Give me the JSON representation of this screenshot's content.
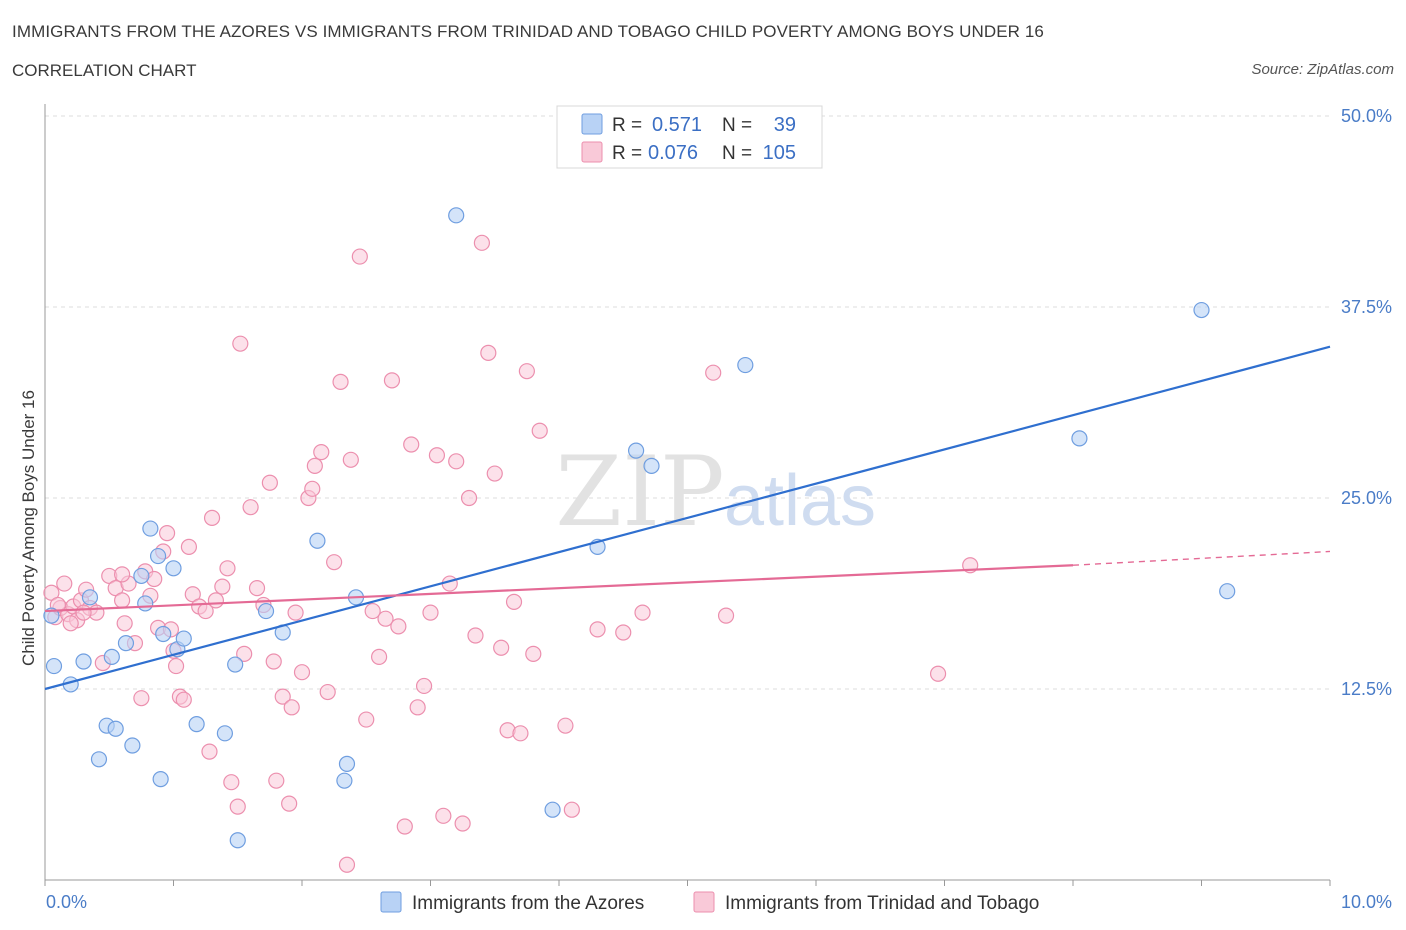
{
  "header": {
    "title": "IMMIGRANTS FROM THE AZORES VS IMMIGRANTS FROM TRINIDAD AND TOBAGO CHILD POVERTY AMONG BOYS UNDER 16",
    "subtitle": "CORRELATION CHART",
    "source": "Source: ZipAtlas.com"
  },
  "watermark": {
    "zip": "ZIP",
    "atlas": "atlas"
  },
  "legend": {
    "r_label": "R =",
    "n_label": "N =",
    "rows": [
      {
        "r": "0.571",
        "n": "39"
      },
      {
        "r": "0.076",
        "n": "105"
      }
    ]
  },
  "colors": {
    "azores_fill": "#b8d2f5",
    "azores_stroke": "#6f9ee0",
    "azores_line": "#2f6fcf",
    "trinidad_fill": "#f9c9d8",
    "trinidad_stroke": "#ec8fae",
    "trinidad_line": "#e46a95",
    "tick_text": "#4a7cc7",
    "grid": "#dcdcdc"
  },
  "chart_data": {
    "type": "scatter",
    "title": "IMMIGRANTS FROM THE AZORES VS IMMIGRANTS FROM TRINIDAD AND TOBAGO CHILD POVERTY AMONG BOYS UNDER 16",
    "xlabel": "",
    "ylabel": "Child Poverty Among Boys Under 16",
    "xlim": [
      0,
      10
    ],
    "ylim": [
      0,
      50
    ],
    "x_tick_labels": [
      "0.0%",
      "10.0%"
    ],
    "y_ticks": [
      12.5,
      25,
      37.5,
      50
    ],
    "y_tick_labels": [
      "12.5%",
      "25.0%",
      "37.5%",
      "50.0%"
    ],
    "grid": true,
    "legend_position": "top-center",
    "series": [
      {
        "name": "Immigrants from the Azores",
        "r": 0.571,
        "n": 39,
        "trend": {
          "x": [
            0,
            10
          ],
          "y": [
            12.5,
            34.9
          ]
        },
        "points": [
          [
            0.07,
            14.0
          ],
          [
            0.2,
            12.8
          ],
          [
            0.3,
            14.3
          ],
          [
            0.35,
            18.5
          ],
          [
            0.42,
            7.9
          ],
          [
            0.48,
            10.1
          ],
          [
            0.52,
            14.6
          ],
          [
            0.55,
            9.9
          ],
          [
            0.63,
            15.5
          ],
          [
            0.68,
            8.8
          ],
          [
            0.75,
            19.9
          ],
          [
            0.78,
            18.1
          ],
          [
            0.82,
            23.0
          ],
          [
            0.88,
            21.2
          ],
          [
            0.9,
            6.6
          ],
          [
            0.92,
            16.1
          ],
          [
            1.0,
            20.4
          ],
          [
            1.03,
            15.1
          ],
          [
            1.08,
            15.8
          ],
          [
            1.18,
            10.2
          ],
          [
            1.4,
            9.6
          ],
          [
            1.48,
            14.1
          ],
          [
            1.5,
            2.6
          ],
          [
            1.72,
            17.6
          ],
          [
            1.85,
            16.2
          ],
          [
            2.12,
            22.2
          ],
          [
            2.35,
            7.6
          ],
          [
            2.33,
            6.5
          ],
          [
            2.42,
            18.5
          ],
          [
            3.2,
            43.5
          ],
          [
            3.95,
            4.6
          ],
          [
            4.3,
            21.8
          ],
          [
            4.6,
            28.1
          ],
          [
            4.72,
            27.1
          ],
          [
            5.45,
            33.7
          ],
          [
            8.05,
            28.9
          ],
          [
            9.2,
            18.9
          ],
          [
            9.0,
            37.3
          ],
          [
            0.05,
            17.3
          ]
        ]
      },
      {
        "name": "Immigrants from Trinidad and Tobago",
        "r": 0.076,
        "n": 105,
        "trend": {
          "x": [
            0,
            8.0
          ],
          "y": [
            17.6,
            20.6
          ]
        },
        "trend_dashed": {
          "x": [
            8.0,
            10
          ],
          "y": [
            20.6,
            21.5
          ]
        },
        "points": [
          [
            0.05,
            18.8
          ],
          [
            0.08,
            17.2
          ],
          [
            0.12,
            17.8
          ],
          [
            0.15,
            19.4
          ],
          [
            0.18,
            17.4
          ],
          [
            0.22,
            17.9
          ],
          [
            0.28,
            18.3
          ],
          [
            0.32,
            19.0
          ],
          [
            0.35,
            17.8
          ],
          [
            0.4,
            17.5
          ],
          [
            0.45,
            14.2
          ],
          [
            0.5,
            19.9
          ],
          [
            0.55,
            19.1
          ],
          [
            0.6,
            18.3
          ],
          [
            0.62,
            16.8
          ],
          [
            0.65,
            19.4
          ],
          [
            0.7,
            15.5
          ],
          [
            0.75,
            11.9
          ],
          [
            0.78,
            20.2
          ],
          [
            0.82,
            18.6
          ],
          [
            0.85,
            19.7
          ],
          [
            0.88,
            16.5
          ],
          [
            0.92,
            21.5
          ],
          [
            0.95,
            22.7
          ],
          [
            0.98,
            16.4
          ],
          [
            1.02,
            14.0
          ],
          [
            1.05,
            12.0
          ],
          [
            1.08,
            11.8
          ],
          [
            1.12,
            21.8
          ],
          [
            1.15,
            18.7
          ],
          [
            1.2,
            17.9
          ],
          [
            1.25,
            17.6
          ],
          [
            1.28,
            8.4
          ],
          [
            1.3,
            23.7
          ],
          [
            1.33,
            18.3
          ],
          [
            1.38,
            19.2
          ],
          [
            1.42,
            20.4
          ],
          [
            1.45,
            6.4
          ],
          [
            1.5,
            4.8
          ],
          [
            1.52,
            35.1
          ],
          [
            1.55,
            14.8
          ],
          [
            1.6,
            24.4
          ],
          [
            1.65,
            19.1
          ],
          [
            1.7,
            18.0
          ],
          [
            1.75,
            26.0
          ],
          [
            1.78,
            14.3
          ],
          [
            1.8,
            6.5
          ],
          [
            1.85,
            12.0
          ],
          [
            1.9,
            5.0
          ],
          [
            1.92,
            11.3
          ],
          [
            1.95,
            17.5
          ],
          [
            2.0,
            13.6
          ],
          [
            2.05,
            25.0
          ],
          [
            2.08,
            25.6
          ],
          [
            2.1,
            27.1
          ],
          [
            2.15,
            28.0
          ],
          [
            2.2,
            12.3
          ],
          [
            2.25,
            20.8
          ],
          [
            2.3,
            32.6
          ],
          [
            2.35,
            1.0
          ],
          [
            2.38,
            27.5
          ],
          [
            2.45,
            40.8
          ],
          [
            2.5,
            10.5
          ],
          [
            2.55,
            17.6
          ],
          [
            2.6,
            14.6
          ],
          [
            2.65,
            17.1
          ],
          [
            2.7,
            32.7
          ],
          [
            2.75,
            16.6
          ],
          [
            2.8,
            3.5
          ],
          [
            2.85,
            28.5
          ],
          [
            2.9,
            11.3
          ],
          [
            2.95,
            12.7
          ],
          [
            3.0,
            17.5
          ],
          [
            3.05,
            27.8
          ],
          [
            3.1,
            4.2
          ],
          [
            3.15,
            19.4
          ],
          [
            3.2,
            27.4
          ],
          [
            3.25,
            3.7
          ],
          [
            3.3,
            25.0
          ],
          [
            3.35,
            16.0
          ],
          [
            3.4,
            41.7
          ],
          [
            3.45,
            34.5
          ],
          [
            3.5,
            26.6
          ],
          [
            3.55,
            15.2
          ],
          [
            3.6,
            9.8
          ],
          [
            3.65,
            18.2
          ],
          [
            3.7,
            9.6
          ],
          [
            3.75,
            33.3
          ],
          [
            3.8,
            14.8
          ],
          [
            3.85,
            29.4
          ],
          [
            4.05,
            10.1
          ],
          [
            4.1,
            4.6
          ],
          [
            4.3,
            16.4
          ],
          [
            4.5,
            16.2
          ],
          [
            4.65,
            17.5
          ],
          [
            5.2,
            33.2
          ],
          [
            5.3,
            17.3
          ],
          [
            6.95,
            13.5
          ],
          [
            7.2,
            20.6
          ],
          [
            0.25,
            17.0
          ],
          [
            0.6,
            20.0
          ],
          [
            1.0,
            15.0
          ],
          [
            0.3,
            17.5
          ],
          [
            0.1,
            18.0
          ],
          [
            0.2,
            16.8
          ]
        ]
      }
    ]
  },
  "bottom_legend": [
    {
      "label": "Immigrants from the Azores"
    },
    {
      "label": "Immigrants from Trinidad and Tobago"
    }
  ]
}
